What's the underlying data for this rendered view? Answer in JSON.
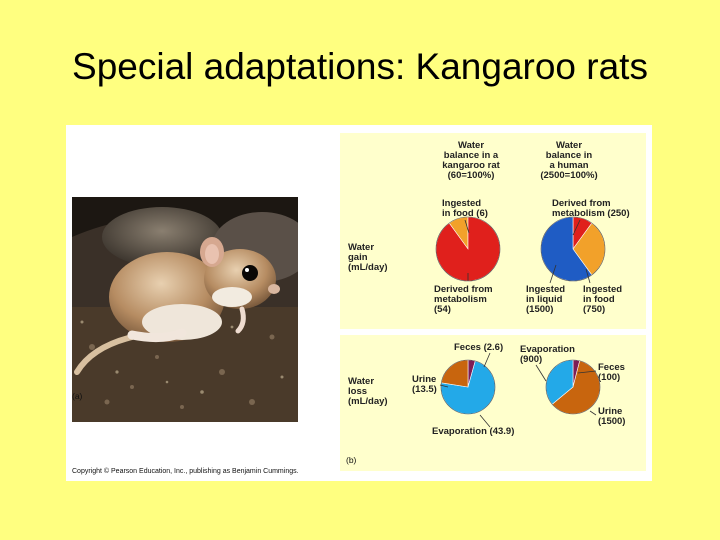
{
  "slide": {
    "title": "Special adaptations: Kangaroo rats"
  },
  "colors": {
    "background": "#ffff80",
    "metabolism": "#e0201c",
    "food": "#f2a12a",
    "liquid": "#1f5cc4",
    "evaporation": "#23a9e8",
    "urine_human": "#c8650e",
    "feces": "#7d1e55"
  },
  "figure": {
    "panel_a_label": "(a)",
    "panel_b_label": "(b)",
    "copyright": "Copyright © Pearson Education, Inc., publishing as Benjamin Cummings.",
    "col_rat_lines": [
      "Water",
      "balance in a",
      "kangaroo rat",
      "(60=100%)"
    ],
    "col_human_lines": [
      "Water",
      "balance in",
      "a human",
      "(2500=100%)"
    ],
    "gain_label_lines": [
      "Water",
      "gain",
      "(mL/day)"
    ],
    "loss_label_lines": [
      "Water",
      "loss",
      "(mL/day)"
    ],
    "rat_gain_labels": {
      "food": [
        "Ingested",
        "in food (6)"
      ],
      "metabolism": [
        "Derived from",
        "metabolism",
        "(54)"
      ]
    },
    "human_gain_labels": {
      "metabolism": [
        "Derived from",
        "metabolism (250)"
      ],
      "liquid": [
        "Ingested",
        "in liquid",
        "(1500)"
      ],
      "food": [
        "Ingested",
        "in food",
        "(750)"
      ]
    },
    "rat_loss_labels": {
      "feces": "Feces (2.6)",
      "urine": [
        "Urine",
        "(13.5)"
      ],
      "evaporation": "Evaporation (43.9)"
    },
    "human_loss_labels": {
      "evaporation": [
        "Evaporation",
        "(900)"
      ],
      "feces": [
        "Feces",
        "(100)"
      ],
      "urine": [
        "Urine",
        "(1500)"
      ]
    }
  },
  "chart_data": [
    {
      "type": "pie",
      "subject": "kangaroo rat",
      "panel": "water gain",
      "slices": [
        {
          "name": "Derived from metabolism",
          "value": 54,
          "color": "#e0201c"
        },
        {
          "name": "Ingested in food",
          "value": 6,
          "color": "#f2a12a"
        }
      ]
    },
    {
      "type": "pie",
      "subject": "human",
      "panel": "water gain",
      "slices": [
        {
          "name": "Derived from metabolism",
          "value": 250,
          "color": "#e0201c"
        },
        {
          "name": "Ingested in food",
          "value": 750,
          "color": "#f2a12a"
        },
        {
          "name": "Ingested in liquid",
          "value": 1500,
          "color": "#1f5cc4"
        }
      ]
    },
    {
      "type": "pie",
      "subject": "kangaroo rat",
      "panel": "water loss",
      "slices": [
        {
          "name": "Feces",
          "value": 2.6,
          "color": "#7d1e55"
        },
        {
          "name": "Evaporation",
          "value": 43.9,
          "color": "#23a9e8"
        },
        {
          "name": "Urine",
          "value": 13.5,
          "color": "#c8650e"
        }
      ]
    },
    {
      "type": "pie",
      "subject": "human",
      "panel": "water loss",
      "slices": [
        {
          "name": "Feces",
          "value": 100,
          "color": "#7d1e55"
        },
        {
          "name": "Urine",
          "value": 1500,
          "color": "#c8650e"
        },
        {
          "name": "Evaporation",
          "value": 900,
          "color": "#23a9e8"
        }
      ]
    }
  ]
}
